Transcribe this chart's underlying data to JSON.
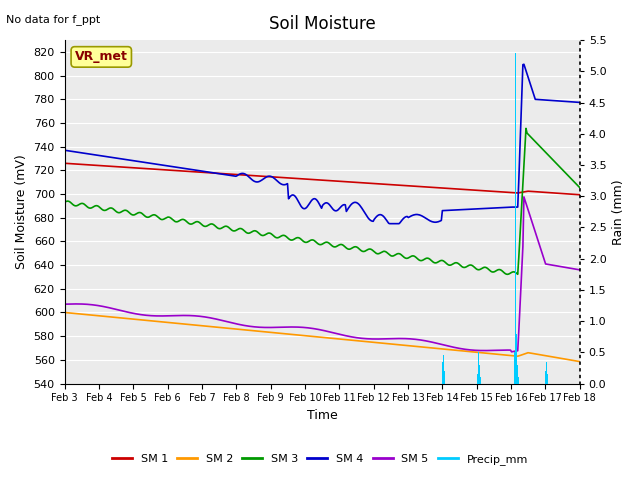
{
  "title": "Soil Moisture",
  "subtitle": "No data for f_ppt",
  "xlabel": "Time",
  "ylabel_left": "Soil Moisture (mV)",
  "ylabel_right": "Rain (mm)",
  "ylim_left": [
    540,
    830
  ],
  "ylim_right": [
    0.0,
    5.5
  ],
  "yticks_left": [
    540,
    560,
    580,
    600,
    620,
    640,
    660,
    680,
    700,
    720,
    740,
    760,
    780,
    800,
    820
  ],
  "yticks_right": [
    0.0,
    0.5,
    1.0,
    1.5,
    2.0,
    2.5,
    3.0,
    3.5,
    4.0,
    4.5,
    5.0,
    5.5
  ],
  "date_labels": [
    "Feb 3",
    "Feb 4",
    "Feb 5",
    "Feb 6",
    "Feb 7",
    "Feb 8",
    "Feb 9",
    "Feb 10",
    "Feb 11",
    "Feb 12",
    "Feb 13",
    "Feb 14",
    "Feb 15",
    "Feb 16",
    "Feb 17",
    "Feb 18"
  ],
  "n_ticks": 16,
  "bg_color": "#ffffff",
  "plot_bg": "#ebebeb",
  "grid_color": "#ffffff",
  "legend_box_facecolor": "#ffff99",
  "legend_box_edgecolor": "#999900",
  "legend_box_text": "VR_met",
  "legend_text_color": "#880000",
  "sm1_color": "#cc0000",
  "sm2_color": "#ff9900",
  "sm3_color": "#009900",
  "sm4_color": "#0000cc",
  "sm5_color": "#9900cc",
  "precip_color": "#00ccff",
  "sm1_label": "SM 1",
  "sm2_label": "SM 2",
  "sm3_label": "SM 3",
  "sm4_label": "SM 4",
  "sm5_label": "SM 5",
  "precip_label": "Precip_mm",
  "title_fontsize": 12,
  "axis_fontsize": 9,
  "tick_fontsize": 8,
  "legend_fontsize": 9
}
